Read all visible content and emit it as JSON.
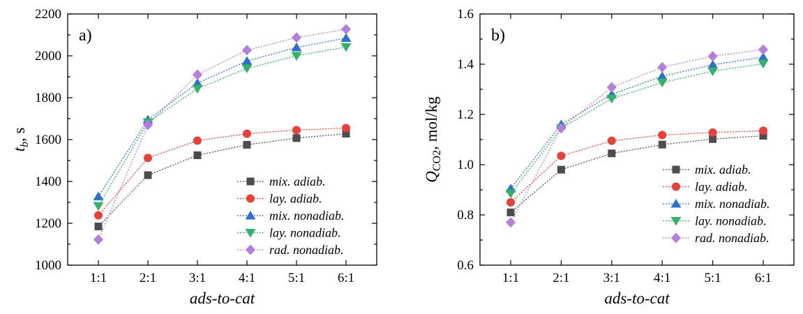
{
  "chart_data": [
    {
      "type": "line",
      "panel_label": "a)",
      "ylabel": "t",
      "ylabel_sub": "b",
      "ylabel_unit": ", s",
      "xlabel": "ads-to-cat",
      "categories": [
        "1:1",
        "2:1",
        "3:1",
        "4:1",
        "5:1",
        "6:1"
      ],
      "ylim": [
        1000,
        2200
      ],
      "yticks": [
        1000,
        1200,
        1400,
        1600,
        1800,
        2000,
        2200
      ],
      "ytick_labels": [
        "1000",
        "1200",
        "1400",
        "1600",
        "1800",
        "2000",
        "2200"
      ],
      "grid": false,
      "legend_position": "bottom-right",
      "series": [
        {
          "name": "mix. adiab.",
          "marker": "square",
          "color": "#4d4d4d",
          "values": [
            1185,
            1430,
            1525,
            1575,
            1607,
            1628
          ]
        },
        {
          "name": "lay. adiab.",
          "marker": "circle",
          "color": "#e8413c",
          "values": [
            1238,
            1512,
            1595,
            1628,
            1645,
            1655
          ]
        },
        {
          "name": "mix. nonadiab.",
          "marker": "triangle-up",
          "color": "#2f6fd0",
          "values": [
            1328,
            1695,
            1870,
            1975,
            2040,
            2085
          ]
        },
        {
          "name": "lay. nonadiab.",
          "marker": "triangle-down",
          "color": "#35b06a",
          "values": [
            1283,
            1683,
            1843,
            1940,
            2000,
            2042
          ]
        },
        {
          "name": "rad. nonadiab.",
          "marker": "diamond",
          "color": "#b27fdc",
          "values": [
            1122,
            1670,
            1910,
            2027,
            2087,
            2127
          ]
        }
      ]
    },
    {
      "type": "line",
      "panel_label": "b)",
      "ylabel": "Q",
      "ylabel_sub": "CO2",
      "ylabel_unit": ", mol/kg",
      "xlabel": "ads-to-cat",
      "categories": [
        "1:1",
        "2:1",
        "3:1",
        "4:1",
        "5:1",
        "6:1"
      ],
      "ylim": [
        0.6,
        1.6
      ],
      "yticks": [
        0.6,
        0.8,
        1.0,
        1.2,
        1.4,
        1.6
      ],
      "ytick_labels": [
        "0.6",
        "0.8",
        "1.0",
        "1.2",
        "1.4",
        "1.6"
      ],
      "grid": false,
      "legend_position": "bottom-right",
      "series": [
        {
          "name": "mix. adiab.",
          "marker": "square",
          "color": "#4d4d4d",
          "values": [
            0.81,
            0.98,
            1.045,
            1.08,
            1.102,
            1.115
          ]
        },
        {
          "name": "lay. adiab.",
          "marker": "circle",
          "color": "#e8413c",
          "values": [
            0.85,
            1.035,
            1.095,
            1.118,
            1.128,
            1.135
          ]
        },
        {
          "name": "mix. nonadiab.",
          "marker": "triangle-up",
          "color": "#2f6fd0",
          "values": [
            0.905,
            1.16,
            1.28,
            1.352,
            1.398,
            1.428
          ]
        },
        {
          "name": "lay. nonadiab.",
          "marker": "triangle-down",
          "color": "#35b06a",
          "values": [
            0.885,
            1.145,
            1.263,
            1.327,
            1.372,
            1.402
          ]
        },
        {
          "name": "rad. nonadiab.",
          "marker": "diamond",
          "color": "#b27fdc",
          "values": [
            0.77,
            1.145,
            1.308,
            1.388,
            1.432,
            1.458
          ]
        }
      ]
    }
  ]
}
